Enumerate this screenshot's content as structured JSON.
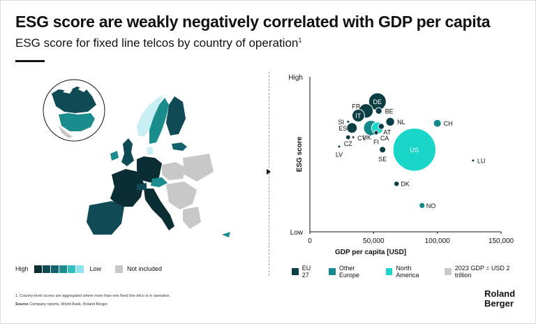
{
  "title": "ESG score are weakly negatively correlated with GDP per capita",
  "subtitle": "ESG score for fixed line telcos by country of operation",
  "subtitle_note": "1",
  "map_legend": {
    "high": "High",
    "low": "Low",
    "not_included": "Not included",
    "scale_colors": [
      "#0b2e35",
      "#0f4a55",
      "#13616b",
      "#1a8c8c",
      "#2fbfc0",
      "#8fe3ec"
    ],
    "not_included_color": "#c8c8c8"
  },
  "colors": {
    "eu27": "#0b3d45",
    "other_europe": "#14888a",
    "north_america": "#1ad6c9",
    "no_data": "#c8c8c8"
  },
  "chart_legend": [
    {
      "label": "EU 27",
      "color": "#0b3d45",
      "shape": "square"
    },
    {
      "label": "Other Europe",
      "color": "#14888a",
      "shape": "square"
    },
    {
      "label": "North America",
      "color": "#1ad6c9",
      "shape": "square"
    },
    {
      "label": "2023 GDP = USD 2 trillion",
      "color": "#c8c8c8",
      "shape": "square"
    }
  ],
  "chart_data": {
    "type": "scatter",
    "xlabel": "GDP per capita [USD]",
    "ylabel": "ESG score",
    "xlim": [
      0,
      150000
    ],
    "x_ticks": [
      0,
      50000,
      100000,
      150000
    ],
    "x_tick_labels": [
      "0",
      "50,000",
      "100,000",
      "150,000"
    ],
    "ylim": [
      0,
      100
    ],
    "y_tick_labels": {
      "top": "High",
      "bottom": "Low"
    },
    "bubble_size_meaning": "2023 GDP",
    "points": [
      {
        "label": "DE",
        "x": 53000,
        "y": 84,
        "gdp": 4.5,
        "group": "eu27"
      },
      {
        "label": "FR",
        "x": 44000,
        "y": 78,
        "gdp": 3.0,
        "group": "eu27"
      },
      {
        "label": "IT",
        "x": 38000,
        "y": 75,
        "gdp": 2.3,
        "group": "eu27"
      },
      {
        "label": "BE",
        "x": 54000,
        "y": 78,
        "gdp": 0.63,
        "group": "eu27"
      },
      {
        "label": "SI",
        "x": 30000,
        "y": 71,
        "gdp": 0.07,
        "group": "eu27"
      },
      {
        "label": "NL",
        "x": 63000,
        "y": 71,
        "gdp": 1.1,
        "group": "eu27"
      },
      {
        "label": "CH",
        "x": 100000,
        "y": 70,
        "gdp": 0.88,
        "group": "other_europe"
      },
      {
        "label": "ES",
        "x": 33000,
        "y": 67,
        "gdp": 1.6,
        "group": "eu27"
      },
      {
        "label": "UK",
        "x": 48000,
        "y": 67,
        "gdp": 3.3,
        "group": "other_europe"
      },
      {
        "label": "AT",
        "x": 56000,
        "y": 68,
        "gdp": 0.52,
        "group": "eu27"
      },
      {
        "label": "CA",
        "x": 53000,
        "y": 67,
        "gdp": 2.1,
        "group": "north_america"
      },
      {
        "label": "FI",
        "x": 52000,
        "y": 64,
        "gdp": 0.3,
        "group": "eu27"
      },
      {
        "label": "CY",
        "x": 34000,
        "y": 61,
        "gdp": 0.03,
        "group": "eu27"
      },
      {
        "label": "CZ",
        "x": 30000,
        "y": 61,
        "gdp": 0.33,
        "group": "eu27"
      },
      {
        "label": "LV",
        "x": 23000,
        "y": 55,
        "gdp": 0.04,
        "group": "eu27"
      },
      {
        "label": "SE",
        "x": 57000,
        "y": 53,
        "gdp": 0.59,
        "group": "eu27"
      },
      {
        "label": "US",
        "x": 82000,
        "y": 53,
        "gdp": 27.0,
        "group": "north_america"
      },
      {
        "label": "LU",
        "x": 128000,
        "y": 46,
        "gdp": 0.09,
        "group": "eu27"
      },
      {
        "label": "DK",
        "x": 68000,
        "y": 31,
        "gdp": 0.4,
        "group": "eu27"
      },
      {
        "label": "NO",
        "x": 88000,
        "y": 17,
        "gdp": 0.49,
        "group": "other_europe"
      }
    ]
  },
  "footnote": "1. Country-level scores are aggregated where more than one fixed line telco is in operation.",
  "source_label": "Source",
  "source_text": "Company reports, World Bank, Roland Berger",
  "logo_line1": "Roland",
  "logo_line2": "Berger"
}
